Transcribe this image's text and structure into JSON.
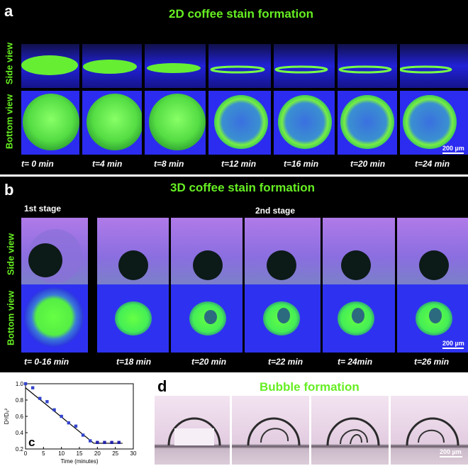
{
  "panel_a": {
    "label": "a",
    "title": "2D coffee stain formation",
    "side_label": "Side view",
    "bottom_label": "Bottom view",
    "times": [
      "t= 0 min",
      "t=4 min",
      "t=8 min",
      "t=12 min",
      "t=16 min",
      "t=20 min",
      "t=24 min"
    ],
    "scale": "200 µm"
  },
  "panel_b": {
    "label": "b",
    "title": "3D coffee stain formation",
    "stage1": "1st stage",
    "stage2": "2nd stage",
    "side_label": "Side view",
    "bottom_label": "Bottom view",
    "times": [
      "t= 0-16 min",
      "t=18 min",
      "t=20 min",
      "t=22 min",
      "t= 24min",
      "t=26 min"
    ],
    "scale": "200 µm"
  },
  "panel_c": {
    "label": "c",
    "chart_data": {
      "type": "scatter",
      "xlabel": "Time (minutes)",
      "ylabel": "D²/D₀²",
      "xlim": [
        0,
        30
      ],
      "ylim": [
        0.2,
        1.0
      ],
      "xticks": [
        "0",
        "5",
        "10",
        "15",
        "20",
        "25",
        "30"
      ],
      "yticks": [
        "0.2",
        "0.4",
        "0.6",
        "0.8",
        "1.0"
      ],
      "series": [
        {
          "x": [
            0,
            2,
            4,
            6,
            8,
            10,
            12,
            14,
            16,
            18
          ],
          "y": [
            1.0,
            0.95,
            0.82,
            0.78,
            0.68,
            0.6,
            0.52,
            0.48,
            0.37,
            0.3
          ],
          "marker": "filled-square",
          "color": "#3344cc"
        },
        {
          "x": [
            20,
            22,
            24,
            26
          ],
          "y": [
            0.28,
            0.28,
            0.28,
            0.28
          ],
          "marker": "filled-square",
          "color": "#2222aa"
        }
      ],
      "fit_line": {
        "x": [
          0,
          19
        ],
        "y": [
          0.95,
          0.27
        ],
        "color": "#000000"
      },
      "plateau_line": {
        "x": [
          19,
          27
        ],
        "y": [
          0.27,
          0.27
        ],
        "color": "#000000"
      }
    }
  },
  "panel_d": {
    "label": "d",
    "title": "Bubble formation",
    "scale": "200 µm"
  }
}
